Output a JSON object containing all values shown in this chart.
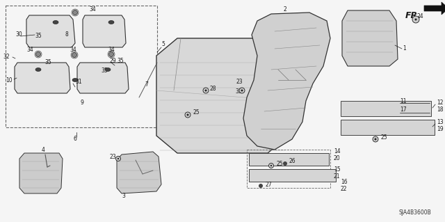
{
  "bg_color": "#f5f5f5",
  "part_number": "SJA4B3600B",
  "fig_width": 6.4,
  "fig_height": 3.19,
  "dpi": 100,
  "lc": "#1a1a1a",
  "fs": 5.5,
  "fs_small": 4.8
}
